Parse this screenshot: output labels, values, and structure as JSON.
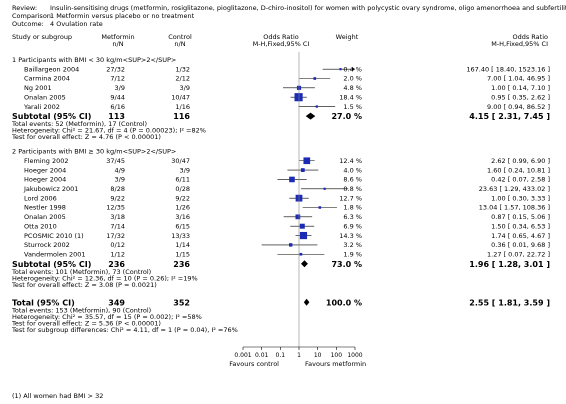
{
  "header": {
    "review_label": "Review:",
    "review": "Insulin-sensitising drugs (metformin, rosiglitazone, pioglitazone, D-chiro-inositol) for women with polycystic ovary syndrome, oligo amenorrhoea and subfertility",
    "comparison_label": "Comparison:",
    "comparison": "1 Metformin versus placebo or no treatment",
    "outcome_label": "Outcome:",
    "outcome": "4 Ovulation rate"
  },
  "columns": {
    "study": "Study or subgroup",
    "metformin": "Metformin",
    "metformin_sub": "n/N",
    "control": "Control",
    "control_sub": "n/N",
    "or_plot": "Odds Ratio",
    "or_plot_sub": "M-H,Fixed,95% CI",
    "weight": "Weight",
    "or_text": "Odds Ratio",
    "or_text_sub": "M-H,Fixed,95% CI"
  },
  "chart_data": {
    "type": "forest",
    "x_scale": "log",
    "xlim": [
      0.001,
      1000
    ],
    "ticks": [
      "0.001",
      "0.01",
      "0.1",
      "1",
      "10",
      "100",
      "1000"
    ],
    "favours_left": "Favours control",
    "favours_right": "Favours metformin",
    "footnote": "(1) All women had BMI > 32",
    "groups": [
      {
        "title": "1 Participants with BMI < 30 kg/m<SUP>2</SUP>",
        "studies": [
          {
            "name": "Baillargeon 2004",
            "metformin": "27/32",
            "control": "1/32",
            "weight": "0.4 %",
            "ci_text": "167.40 [ 18.40, 1523.16 ]",
            "or": 167.4,
            "lo": 18.4,
            "hi": 1523.16,
            "w": 0.4
          },
          {
            "name": "Carmina 2004",
            "metformin": "7/12",
            "control": "2/12",
            "weight": "2.0 %",
            "ci_text": "7.00 [ 1.04, 46.95 ]",
            "or": 7.0,
            "lo": 1.04,
            "hi": 46.95,
            "w": 2.0
          },
          {
            "name": "Ng 2001",
            "metformin": "3/9",
            "control": "3/9",
            "weight": "4.8 %",
            "ci_text": "1.00 [ 0.14, 7.10 ]",
            "or": 1.0,
            "lo": 0.14,
            "hi": 7.1,
            "w": 4.8
          },
          {
            "name": "Onalan 2005",
            "metformin": "9/44",
            "control": "10/47",
            "weight": "18.4 %",
            "ci_text": "0.95 [ 0.35, 2.62 ]",
            "or": 0.95,
            "lo": 0.35,
            "hi": 2.62,
            "w": 18.4
          },
          {
            "name": "Yarali 2002",
            "metformin": "6/16",
            "control": "1/16",
            "weight": "1.5 %",
            "ci_text": "9.00 [ 0.94, 86.52 ]",
            "or": 9.0,
            "lo": 0.94,
            "hi": 86.52,
            "w": 1.5
          }
        ],
        "subtotal": {
          "label": "Subtotal (95% CI)",
          "metformin": "113",
          "control": "116",
          "weight": "27.0 %",
          "ci_text": "4.15 [ 2.31, 7.45 ]",
          "or": 4.15,
          "lo": 2.31,
          "hi": 7.45
        },
        "stats": [
          "Total events: 52 (Metformin), 17 (Control)",
          "Heterogeneity: Chi² = 21.67, df = 4 (P = 0.00023); I² =82%",
          "Test for overall effect: Z = 4.76 (P < 0.00001)"
        ]
      },
      {
        "title": "2 Participants with BMI ≥ 30 kg/m<SUP>2</SUP>",
        "studies": [
          {
            "name": "Fleming 2002",
            "metformin": "37/45",
            "control": "30/47",
            "weight": "12.4 %",
            "ci_text": "2.62 [ 0.99, 6.90 ]",
            "or": 2.62,
            "lo": 0.99,
            "hi": 6.9,
            "w": 12.4
          },
          {
            "name": "Hoeger 2004",
            "metformin": "4/9",
            "control": "3/9",
            "weight": "4.0 %",
            "ci_text": "1.60 [ 0.24, 10.81 ]",
            "or": 1.6,
            "lo": 0.24,
            "hi": 10.81,
            "w": 4.0
          },
          {
            "name": "Hoeger 2004",
            "metformin": "3/9",
            "control": "6/11",
            "weight": "8.6 %",
            "ci_text": "0.42 [ 0.07, 2.58 ]",
            "or": 0.42,
            "lo": 0.07,
            "hi": 2.58,
            "w": 8.6
          },
          {
            "name": "Jakubowicz 2001",
            "metformin": "8/28",
            "control": "0/28",
            "weight": "0.8 %",
            "ci_text": "23.63 [ 1.29, 433.02 ]",
            "or": 23.63,
            "lo": 1.29,
            "hi": 433.02,
            "w": 0.8
          },
          {
            "name": "Lord 2006",
            "metformin": "9/22",
            "control": "9/22",
            "weight": "12.7 %",
            "ci_text": "1.00 [ 0.30, 3.33 ]",
            "or": 1.0,
            "lo": 0.3,
            "hi": 3.33,
            "w": 12.7
          },
          {
            "name": "Nestler 1998",
            "metformin": "12/35",
            "control": "1/26",
            "weight": "1.8 %",
            "ci_text": "13.04 [ 1.57, 108.36 ]",
            "or": 13.04,
            "lo": 1.57,
            "hi": 108.36,
            "w": 1.8
          },
          {
            "name": "Onalan 2005",
            "metformin": "3/18",
            "control": "3/16",
            "weight": "6.3 %",
            "ci_text": "0.87 [ 0.15, 5.06 ]",
            "or": 0.87,
            "lo": 0.15,
            "hi": 5.06,
            "w": 6.3
          },
          {
            "name": "Otta 2010",
            "metformin": "7/14",
            "control": "6/15",
            "weight": "6.9 %",
            "ci_text": "1.50 [ 0.34, 6.53 ]",
            "or": 1.5,
            "lo": 0.34,
            "hi": 6.53,
            "w": 6.9
          },
          {
            "name": "PCOSMIC 2010 (1)",
            "metformin": "17/32",
            "control": "13/33",
            "weight": "14.3 %",
            "ci_text": "1.74 [ 0.65, 4.67 ]",
            "or": 1.74,
            "lo": 0.65,
            "hi": 4.67,
            "w": 14.3
          },
          {
            "name": "Sturrock 2002",
            "metformin": "0/12",
            "control": "1/14",
            "weight": "3.2 %",
            "ci_text": "0.36 [ 0.01, 9.68 ]",
            "or": 0.36,
            "lo": 0.01,
            "hi": 9.68,
            "w": 3.2
          },
          {
            "name": "Vandermolen 2001",
            "metformin": "1/12",
            "control": "1/15",
            "weight": "1.9 %",
            "ci_text": "1.27 [ 0.07, 22.72 ]",
            "or": 1.27,
            "lo": 0.07,
            "hi": 22.72,
            "w": 1.9
          }
        ],
        "subtotal": {
          "label": "Subtotal (95% CI)",
          "metformin": "236",
          "control": "236",
          "weight": "73.0 %",
          "ci_text": "1.96 [ 1.28, 3.01 ]",
          "or": 1.96,
          "lo": 1.28,
          "hi": 3.01
        },
        "stats": [
          "Total events: 101 (Metformin), 73 (Control)",
          "Heterogeneity: Chi² = 12.36, df = 10 (P = 0.26); I² =19%",
          "Test for overall effect: Z = 3.08 (P = 0.0021)"
        ]
      }
    ],
    "total": {
      "label": "Total (95% CI)",
      "metformin": "349",
      "control": "352",
      "weight": "100.0 %",
      "ci_text": "2.55 [ 1.81, 3.59 ]",
      "or": 2.55,
      "lo": 1.81,
      "hi": 3.59
    },
    "total_stats": [
      "Total events: 153 (Metformin), 90 (Control)",
      "Heterogeneity: Chi² = 35.57, df = 15 (P = 0.002); I² =58%",
      "Test for overall effect: Z = 5.36 (P < 0.00001)",
      "Test for subgroup differences: Chi² = 4.11, df = 1 (P = 0.04), I² =76%"
    ]
  }
}
